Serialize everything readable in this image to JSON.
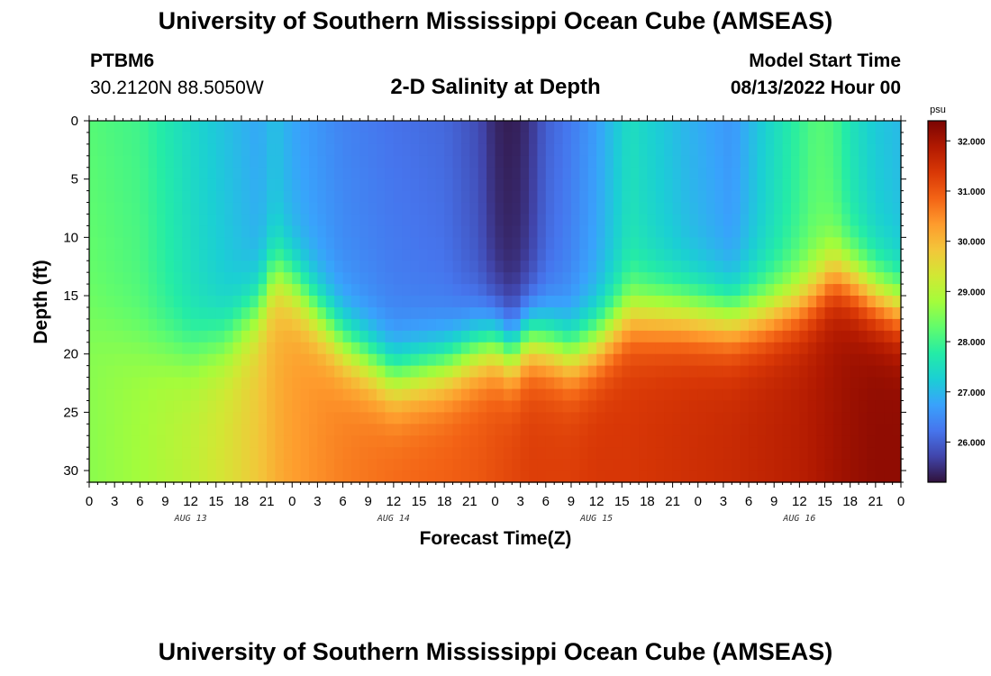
{
  "header": {
    "title": "University of Southern Mississippi Ocean Cube (AMSEAS)",
    "station_name": "PTBM6",
    "station_coords": "30.2120N  88.5050W",
    "subtitle": "2-D Salinity at Depth",
    "model_start_label": "Model Start Time",
    "model_start_value": "08/13/2022 Hour 00"
  },
  "footer": {
    "title": "University of Southern Mississippi Ocean Cube (AMSEAS)"
  },
  "chart_data": {
    "type": "heatmap",
    "title": "2-D Salinity at Depth",
    "xlabel": "Forecast Time(Z)",
    "ylabel": "Depth (ft)",
    "x_range": [
      0,
      96
    ],
    "y_range": [
      0,
      31
    ],
    "x_ticks": [
      {
        "pos": 0,
        "label": "0"
      },
      {
        "pos": 3,
        "label": "3"
      },
      {
        "pos": 6,
        "label": "6"
      },
      {
        "pos": 9,
        "label": "9"
      },
      {
        "pos": 12,
        "label": "12"
      },
      {
        "pos": 15,
        "label": "15"
      },
      {
        "pos": 18,
        "label": "18"
      },
      {
        "pos": 21,
        "label": "21"
      },
      {
        "pos": 24,
        "label": "0"
      },
      {
        "pos": 27,
        "label": "3"
      },
      {
        "pos": 30,
        "label": "6"
      },
      {
        "pos": 33,
        "label": "9"
      },
      {
        "pos": 36,
        "label": "12"
      },
      {
        "pos": 39,
        "label": "15"
      },
      {
        "pos": 42,
        "label": "18"
      },
      {
        "pos": 45,
        "label": "21"
      },
      {
        "pos": 48,
        "label": "0"
      },
      {
        "pos": 51,
        "label": "3"
      },
      {
        "pos": 54,
        "label": "6"
      },
      {
        "pos": 57,
        "label": "9"
      },
      {
        "pos": 60,
        "label": "12"
      },
      {
        "pos": 63,
        "label": "15"
      },
      {
        "pos": 66,
        "label": "18"
      },
      {
        "pos": 69,
        "label": "21"
      },
      {
        "pos": 72,
        "label": "0"
      },
      {
        "pos": 75,
        "label": "3"
      },
      {
        "pos": 78,
        "label": "6"
      },
      {
        "pos": 81,
        "label": "9"
      },
      {
        "pos": 84,
        "label": "12"
      },
      {
        "pos": 87,
        "label": "15"
      },
      {
        "pos": 90,
        "label": "18"
      },
      {
        "pos": 93,
        "label": "21"
      },
      {
        "pos": 96,
        "label": "0"
      }
    ],
    "day_labels": [
      {
        "pos": 12,
        "label": "AUG 13"
      },
      {
        "pos": 36,
        "label": "AUG 14"
      },
      {
        "pos": 60,
        "label": "AUG 15"
      },
      {
        "pos": 84,
        "label": "AUG 16"
      }
    ],
    "y_ticks": [
      0,
      5,
      10,
      15,
      20,
      25,
      30
    ],
    "colorbar": {
      "unit": "psu",
      "range": [
        25.2,
        32.4
      ],
      "ticks": [
        32.0,
        31.0,
        30.0,
        29.0,
        28.0,
        27.0,
        26.0
      ],
      "tick_labels": [
        "32.000",
        "31.000",
        "30.000",
        "29.000",
        "28.000",
        "27.000",
        "26.000"
      ],
      "colors": [
        "#30123b",
        "#4145ab",
        "#4675ed",
        "#39a2fc",
        "#1bcfd4",
        "#24eca6",
        "#61fc6c",
        "#a4fc3b",
        "#d1e834",
        "#f3c63a",
        "#fe9b2d",
        "#f36315",
        "#d93806",
        "#b11901",
        "#7a0402"
      ]
    },
    "depth_levels": [
      0,
      1,
      2,
      3,
      4,
      5,
      6,
      7,
      8,
      9,
      10,
      11,
      12,
      13,
      14,
      15,
      16,
      17,
      18,
      19,
      20,
      21,
      22,
      23,
      24,
      25,
      26,
      27,
      28,
      29,
      30,
      31
    ],
    "time_keys": [
      0,
      6,
      12,
      16,
      20,
      22,
      24,
      30,
      36,
      42,
      46,
      48,
      50,
      52,
      54,
      57,
      60,
      64,
      70,
      76,
      80,
      84,
      86,
      88,
      90,
      93,
      96
    ],
    "interface_depth_ft": [
      17.5,
      19,
      20,
      19,
      16,
      13,
      14,
      19,
      22,
      21,
      19.5,
      19,
      20,
      18.5,
      19,
      20,
      19,
      16.5,
      16.5,
      17,
      16.5,
      15.5,
      14.5,
      13,
      13.5,
      15,
      16
    ],
    "surface_salinity": [
      28.2,
      28.0,
      27.4,
      27.1,
      26.8,
      27.1,
      26.8,
      26.4,
      26.2,
      26.1,
      25.8,
      25.4,
      25.3,
      25.5,
      26.0,
      26.3,
      26.7,
      27.5,
      27.0,
      26.6,
      27.3,
      27.9,
      28.2,
      28.1,
      27.6,
      27.2,
      27.0
    ],
    "bottom_salinity": [
      28.6,
      28.8,
      29.1,
      29.4,
      29.8,
      30.1,
      30.3,
      30.6,
      30.8,
      30.9,
      31.0,
      31.1,
      31.2,
      31.3,
      31.3,
      31.3,
      31.4,
      31.4,
      31.5,
      31.6,
      31.7,
      31.8,
      31.9,
      32.0,
      32.1,
      32.2,
      32.2
    ]
  }
}
